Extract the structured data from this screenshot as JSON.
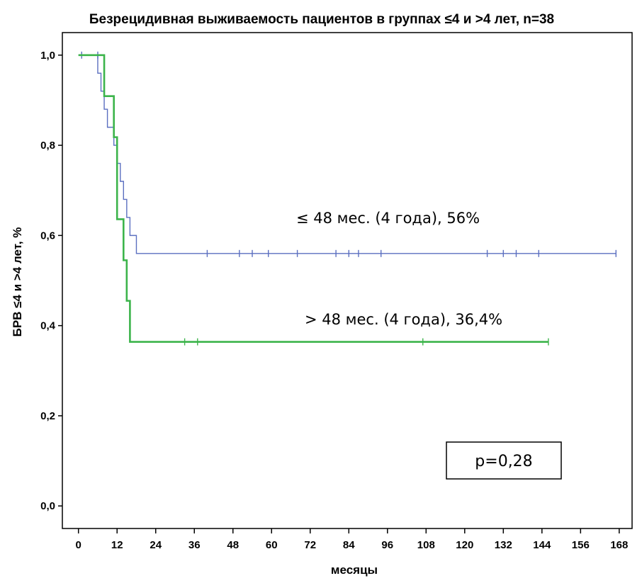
{
  "chart_data": {
    "type": "line",
    "subtype": "kaplan-meier",
    "title": "Безрецидивная выживаемость пациентов в группах ≤4 и >4 лет, n=38",
    "xlabel": "месяцы",
    "ylabel": "БРВ ≤4 и >4 лет, %",
    "xlim": [
      -5,
      172
    ],
    "ylim": [
      -0.05,
      1.05
    ],
    "xticks": [
      0,
      12,
      24,
      36,
      48,
      60,
      72,
      84,
      96,
      108,
      120,
      132,
      144,
      156,
      168
    ],
    "yticks": [
      0.0,
      0.2,
      0.4,
      0.6,
      0.8,
      1.0
    ],
    "ytick_labels": [
      "0,0",
      "0,2",
      "0,4",
      "0,6",
      "0,8",
      "1,0"
    ],
    "grid": false,
    "series": [
      {
        "color": "#5b6fc0",
        "steps": [
          [
            0,
            1.0
          ],
          [
            6,
            0.96
          ],
          [
            7,
            0.92
          ],
          [
            8,
            0.88
          ],
          [
            9,
            0.84
          ],
          [
            11,
            0.8
          ],
          [
            12,
            0.76
          ],
          [
            13,
            0.72
          ],
          [
            14,
            0.68
          ],
          [
            15,
            0.64
          ],
          [
            16,
            0.6
          ],
          [
            18,
            0.56
          ],
          [
            167,
            0.56
          ]
        ],
        "censored": [
          [
            1,
            1.0
          ],
          [
            6,
            1.0
          ],
          [
            40,
            0.56
          ],
          [
            50,
            0.56
          ],
          [
            54,
            0.56
          ],
          [
            59,
            0.56
          ],
          [
            68,
            0.56
          ],
          [
            80,
            0.56
          ],
          [
            84,
            0.56
          ],
          [
            87,
            0.56
          ],
          [
            94,
            0.56
          ],
          [
            127,
            0.56
          ],
          [
            132,
            0.56
          ],
          [
            136,
            0.56
          ],
          [
            143,
            0.56
          ],
          [
            167,
            0.56
          ]
        ]
      },
      {
        "color": "#3cb44b",
        "steps": [
          [
            0,
            1.0
          ],
          [
            8,
            0.909
          ],
          [
            11,
            0.818
          ],
          [
            12,
            0.636
          ],
          [
            14,
            0.545
          ],
          [
            15,
            0.455
          ],
          [
            16,
            0.364
          ],
          [
            146,
            0.364
          ]
        ],
        "censored": [
          [
            33,
            0.364
          ],
          [
            37,
            0.364
          ],
          [
            107,
            0.364
          ],
          [
            146,
            0.364
          ]
        ]
      }
    ],
    "annotations": [
      {
        "text": "≤ 48 мес. (4 года), 56%"
      },
      {
        "text": "> 48 мес. (4 года), 36,4%"
      },
      {
        "text": "p=0,28",
        "boxed": true
      }
    ]
  }
}
